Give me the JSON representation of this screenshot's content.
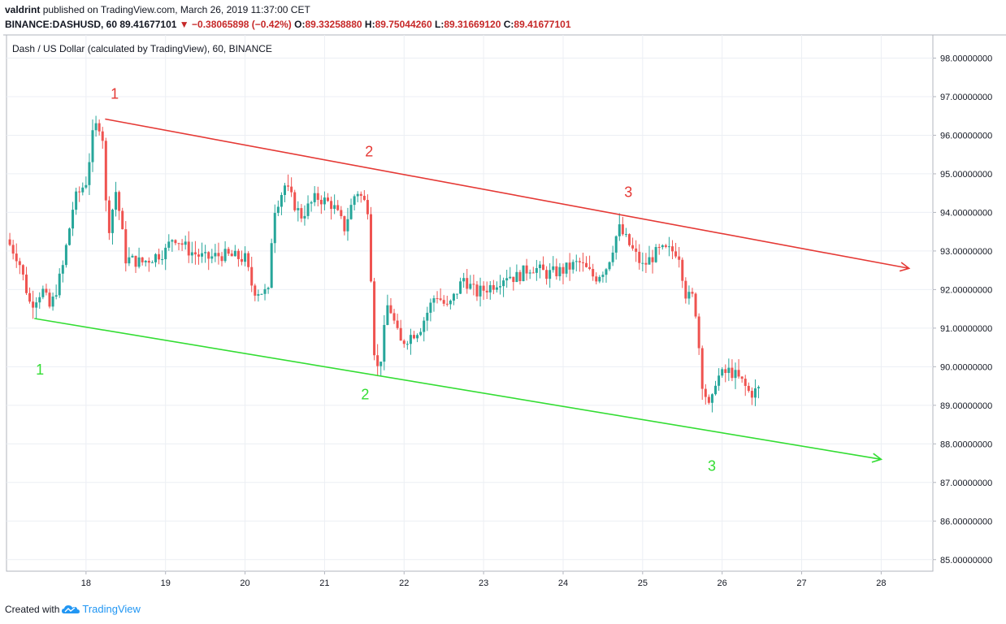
{
  "header": {
    "author": "valdrint",
    "published_text": "published on TradingView.com, March 26, 2019 11:37:00 CET",
    "symbol": "BINANCE:DASHUSD, 60",
    "last": "89.41677101",
    "change": "−0.38065898 (−0.42%)",
    "o_label": "O:",
    "o_value": "89.33258880",
    "h_label": "H:",
    "h_value": "89.75044260",
    "l_label": "L:",
    "l_value": "89.31669120",
    "c_label": "C:",
    "c_value": "89.41677101"
  },
  "footer": {
    "created_with": "Created with",
    "brand": "TradingView"
  },
  "colors": {
    "up": "#26a69a",
    "down": "#ef5350",
    "resistance": "#e53935",
    "support": "#33dd33",
    "grid": "#eceff4",
    "axis_text": "#131722"
  },
  "chart_data": {
    "type": "candlestick",
    "title": "Dash / US Dollar (calculated by TradingView), 60, BINANCE",
    "x_ticks": [
      "18",
      "19",
      "20",
      "21",
      "22",
      "23",
      "24",
      "25",
      "26",
      "27",
      "28"
    ],
    "y_ticks": [
      "85.00000000",
      "86.00000000",
      "87.00000000",
      "88.00000000",
      "89.00000000",
      "90.00000000",
      "91.00000000",
      "92.00000000",
      "93.00000000",
      "94.00000000",
      "95.00000000",
      "96.00000000",
      "97.00000000",
      "98.00000000"
    ],
    "xlim": [
      17.0,
      28.65
    ],
    "ylim": [
      84.7,
      98.6
    ],
    "grid": true,
    "anchors": [
      [
        17.0,
        93.3
      ],
      [
        17.15,
        92.8
      ],
      [
        17.3,
        91.6
      ],
      [
        17.45,
        92.0
      ],
      [
        17.55,
        91.5
      ],
      [
        17.7,
        92.5
      ],
      [
        17.85,
        94.3
      ],
      [
        18.0,
        94.8
      ],
      [
        18.1,
        96.2
      ],
      [
        18.2,
        96.3
      ],
      [
        18.27,
        93.4
      ],
      [
        18.38,
        94.6
      ],
      [
        18.5,
        92.8
      ],
      [
        18.7,
        92.7
      ],
      [
        19.0,
        93.0
      ],
      [
        19.1,
        93.4
      ],
      [
        19.3,
        93.0
      ],
      [
        19.5,
        92.8
      ],
      [
        19.7,
        92.9
      ],
      [
        20.0,
        92.8
      ],
      [
        20.1,
        92.0
      ],
      [
        20.3,
        91.9
      ],
      [
        20.35,
        94.0
      ],
      [
        20.5,
        94.7
      ],
      [
        20.7,
        93.9
      ],
      [
        20.9,
        94.4
      ],
      [
        21.1,
        94.2
      ],
      [
        21.25,
        93.6
      ],
      [
        21.4,
        94.6
      ],
      [
        21.55,
        94.1
      ],
      [
        21.62,
        90.5
      ],
      [
        21.68,
        89.8
      ],
      [
        21.8,
        91.7
      ],
      [
        21.95,
        90.6
      ],
      [
        22.2,
        91.0
      ],
      [
        22.4,
        91.9
      ],
      [
        22.55,
        91.5
      ],
      [
        22.75,
        92.3
      ],
      [
        22.9,
        91.9
      ],
      [
        23.1,
        92.1
      ],
      [
        23.3,
        92.4
      ],
      [
        23.4,
        92.3
      ],
      [
        23.6,
        92.6
      ],
      [
        23.8,
        92.4
      ],
      [
        24.0,
        92.5
      ],
      [
        24.2,
        92.7
      ],
      [
        24.4,
        92.3
      ],
      [
        24.55,
        92.6
      ],
      [
        24.7,
        93.6
      ],
      [
        24.85,
        93.1
      ],
      [
        25.0,
        92.6
      ],
      [
        25.2,
        93.0
      ],
      [
        25.45,
        93.0
      ],
      [
        25.55,
        91.8
      ],
      [
        25.65,
        91.8
      ],
      [
        25.75,
        89.6
      ],
      [
        25.85,
        88.8
      ],
      [
        25.92,
        89.7
      ],
      [
        26.1,
        89.9
      ],
      [
        26.25,
        89.6
      ],
      [
        26.35,
        89.3
      ],
      [
        26.47,
        89.42
      ]
    ],
    "annotations": {
      "resistance_line": {
        "x": [
          18.24,
          28.35
        ],
        "y": [
          96.42,
          92.55
        ],
        "color": "#e53935",
        "labels": [
          "1",
          "2",
          "3"
        ]
      },
      "support_line": {
        "x": [
          17.35,
          28.0
        ],
        "y": [
          91.25,
          87.6
        ],
        "color": "#33dd33",
        "labels": [
          "1",
          "2",
          "3"
        ]
      }
    }
  }
}
